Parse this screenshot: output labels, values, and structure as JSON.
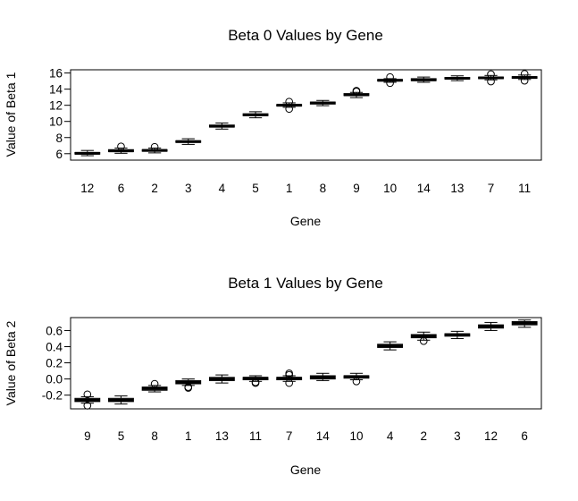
{
  "chart_data": [
    {
      "type": "boxplot",
      "title": "Beta 0 Values by Gene",
      "xlabel": "Gene",
      "ylabel": "Value of Beta 1",
      "ylim": [
        5.2,
        16.4
      ],
      "yticks": [
        6,
        8,
        10,
        12,
        14,
        16
      ],
      "yticklabels": [
        "6",
        "8",
        "10",
        "12",
        "14",
        "16"
      ],
      "categories": [
        "12",
        "6",
        "2",
        "3",
        "4",
        "5",
        "1",
        "8",
        "9",
        "10",
        "14",
        "13",
        "7",
        "11"
      ],
      "boxes": [
        {
          "whislo": 5.75,
          "q1": 5.95,
          "med": 6.05,
          "q3": 6.15,
          "whishi": 6.4,
          "outliers": []
        },
        {
          "whislo": 6.05,
          "q1": 6.25,
          "med": 6.35,
          "q3": 6.5,
          "whishi": 6.7,
          "outliers": [
            6.9
          ]
        },
        {
          "whislo": 6.1,
          "q1": 6.3,
          "med": 6.4,
          "q3": 6.5,
          "whishi": 6.7,
          "outliers": [
            6.85
          ]
        },
        {
          "whislo": 7.15,
          "q1": 7.4,
          "med": 7.5,
          "q3": 7.6,
          "whishi": 7.85,
          "outliers": []
        },
        {
          "whislo": 9.05,
          "q1": 9.3,
          "med": 9.4,
          "q3": 9.55,
          "whishi": 9.8,
          "outliers": []
        },
        {
          "whislo": 10.45,
          "q1": 10.7,
          "med": 10.8,
          "q3": 10.95,
          "whishi": 11.2,
          "outliers": []
        },
        {
          "whislo": 11.75,
          "q1": 11.9,
          "med": 12.0,
          "q3": 12.1,
          "whishi": 12.3,
          "outliers": [
            11.55,
            12.45
          ]
        },
        {
          "whislo": 11.95,
          "q1": 12.15,
          "med": 12.3,
          "q3": 12.4,
          "whishi": 12.6,
          "outliers": []
        },
        {
          "whislo": 12.95,
          "q1": 13.2,
          "med": 13.3,
          "q3": 13.45,
          "whishi": 13.6,
          "outliers": [
            13.7,
            13.8
          ]
        },
        {
          "whislo": 14.85,
          "q1": 15.0,
          "med": 15.1,
          "q3": 15.2,
          "whishi": 15.3,
          "outliers": [
            14.75,
            15.5
          ]
        },
        {
          "whislo": 14.85,
          "q1": 15.05,
          "med": 15.15,
          "q3": 15.3,
          "whishi": 15.5,
          "outliers": []
        },
        {
          "whislo": 15.05,
          "q1": 15.25,
          "med": 15.35,
          "q3": 15.45,
          "whishi": 15.65,
          "outliers": []
        },
        {
          "whislo": 15.15,
          "q1": 15.3,
          "med": 15.4,
          "q3": 15.5,
          "whishi": 15.7,
          "outliers": [
            14.95,
            15.85
          ]
        },
        {
          "whislo": 15.2,
          "q1": 15.35,
          "med": 15.45,
          "q3": 15.55,
          "whishi": 15.75,
          "outliers": [
            15.05,
            15.9
          ]
        }
      ],
      "grid": false,
      "legend": "none"
    },
    {
      "type": "boxplot",
      "title": "Beta 1 Values by Gene",
      "xlabel": "Gene",
      "ylabel": "Value of Beta 2",
      "ylim": [
        -0.37,
        0.76
      ],
      "yticks": [
        -0.2,
        0.0,
        0.2,
        0.4,
        0.6
      ],
      "yticklabels": [
        "-0.2",
        "0.0",
        "0.2",
        "0.4",
        "0.6"
      ],
      "categories": [
        "9",
        "5",
        "8",
        "1",
        "13",
        "11",
        "7",
        "14",
        "10",
        "4",
        "2",
        "3",
        "12",
        "6"
      ],
      "boxes": [
        {
          "whislo": -0.3,
          "q1": -0.28,
          "med": -0.26,
          "q3": -0.24,
          "whishi": -0.22,
          "outliers": [
            -0.19,
            -0.33
          ]
        },
        {
          "whislo": -0.31,
          "q1": -0.28,
          "med": -0.26,
          "q3": -0.24,
          "whishi": -0.21,
          "outliers": []
        },
        {
          "whislo": -0.16,
          "q1": -0.14,
          "med": -0.12,
          "q3": -0.1,
          "whishi": -0.08,
          "outliers": [
            -0.06
          ]
        },
        {
          "whislo": -0.08,
          "q1": -0.06,
          "med": -0.04,
          "q3": -0.02,
          "whishi": 0.0,
          "outliers": [
            -0.1,
            -0.11
          ]
        },
        {
          "whislo": -0.05,
          "q1": -0.02,
          "med": 0.0,
          "q3": 0.02,
          "whishi": 0.05,
          "outliers": []
        },
        {
          "whislo": -0.03,
          "q1": -0.01,
          "med": 0.01,
          "q3": 0.02,
          "whishi": 0.04,
          "outliers": [
            -0.04,
            -0.05
          ]
        },
        {
          "whislo": -0.03,
          "q1": -0.01,
          "med": 0.01,
          "q3": 0.02,
          "whishi": 0.04,
          "outliers": [
            -0.05,
            0.05,
            0.07
          ]
        },
        {
          "whislo": -0.02,
          "q1": 0.0,
          "med": 0.02,
          "q3": 0.04,
          "whishi": 0.07,
          "outliers": []
        },
        {
          "whislo": -0.01,
          "q1": 0.01,
          "med": 0.03,
          "q3": 0.04,
          "whishi": 0.07,
          "outliers": [
            -0.03
          ]
        },
        {
          "whislo": 0.36,
          "q1": 0.39,
          "med": 0.41,
          "q3": 0.43,
          "whishi": 0.46,
          "outliers": []
        },
        {
          "whislo": 0.48,
          "q1": 0.51,
          "med": 0.53,
          "q3": 0.55,
          "whishi": 0.58,
          "outliers": [
            0.47
          ]
        },
        {
          "whislo": 0.5,
          "q1": 0.53,
          "med": 0.55,
          "q3": 0.56,
          "whishi": 0.59,
          "outliers": []
        },
        {
          "whislo": 0.6,
          "q1": 0.63,
          "med": 0.65,
          "q3": 0.67,
          "whishi": 0.7,
          "outliers": []
        },
        {
          "whislo": 0.64,
          "q1": 0.67,
          "med": 0.69,
          "q3": 0.71,
          "whishi": 0.73,
          "outliers": []
        }
      ],
      "grid": false,
      "legend": "none"
    }
  ]
}
